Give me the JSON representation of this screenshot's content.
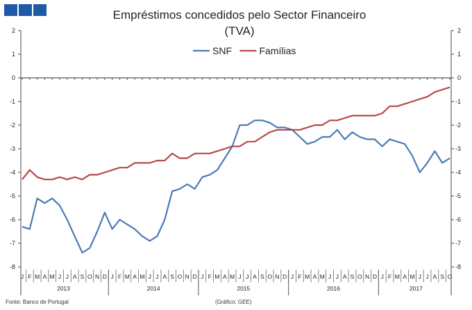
{
  "logo_colors": [
    "#1f5aa6",
    "#1f5aa6",
    "#1f5aa6"
  ],
  "footer": {
    "source": "Fonte: Banco de Portugal",
    "credit": "(Gráfico: GEE)"
  },
  "chart_data": {
    "type": "line",
    "title": "Empréstimos concedidos pelo Sector Financeiro",
    "subtitle": "(TVA)",
    "xlabel": "",
    "ylabel": "",
    "ylim": [
      -8,
      2
    ],
    "yticks": [
      2,
      1,
      0,
      -1,
      -2,
      -3,
      -4,
      -5,
      -6,
      -7,
      -8
    ],
    "legend_position": "top-center",
    "grid": false,
    "years": [
      {
        "label": "2013",
        "months": 12
      },
      {
        "label": "2014",
        "months": 12
      },
      {
        "label": "2015",
        "months": 12
      },
      {
        "label": "2016",
        "months": 12
      },
      {
        "label": "2017",
        "months": 10
      }
    ],
    "month_labels": [
      "J",
      "F",
      "M",
      "A",
      "M",
      "J",
      "J",
      "A",
      "S",
      "O",
      "N",
      "D"
    ],
    "series": [
      {
        "name": "SNF",
        "color": "#4a7ab5",
        "values": [
          -6.3,
          -6.4,
          -5.1,
          -5.3,
          -5.1,
          -5.4,
          -6.0,
          -6.7,
          -7.4,
          -7.2,
          -6.5,
          -5.7,
          -6.4,
          -6.0,
          -6.2,
          -6.4,
          -6.7,
          -6.9,
          -6.7,
          -6.0,
          -4.8,
          -4.7,
          -4.5,
          -4.7,
          -4.2,
          -4.1,
          -3.9,
          -3.4,
          -2.9,
          -2.0,
          -2.0,
          -1.8,
          -1.8,
          -1.9,
          -2.1,
          -2.1,
          -2.2,
          -2.5,
          -2.8,
          -2.7,
          -2.5,
          -2.5,
          -2.2,
          -2.6,
          -2.3,
          -2.5,
          -2.6,
          -2.6,
          -2.9,
          -2.6,
          -2.7,
          -2.8,
          -3.3,
          -4.0,
          -3.6,
          -3.1,
          -3.6,
          -3.4
        ]
      },
      {
        "name": "Famílias",
        "color": "#b54a47",
        "values": [
          -4.3,
          -3.9,
          -4.2,
          -4.3,
          -4.3,
          -4.2,
          -4.3,
          -4.2,
          -4.3,
          -4.1,
          -4.1,
          -4.0,
          -3.9,
          -3.8,
          -3.8,
          -3.6,
          -3.6,
          -3.6,
          -3.5,
          -3.5,
          -3.2,
          -3.4,
          -3.4,
          -3.2,
          -3.2,
          -3.2,
          -3.1,
          -3.0,
          -2.9,
          -2.9,
          -2.7,
          -2.7,
          -2.5,
          -2.3,
          -2.2,
          -2.2,
          -2.2,
          -2.2,
          -2.1,
          -2.0,
          -2.0,
          -1.8,
          -1.8,
          -1.7,
          -1.6,
          -1.6,
          -1.6,
          -1.6,
          -1.5,
          -1.2,
          -1.2,
          -1.1,
          -1.0,
          -0.9,
          -0.8,
          -0.6,
          -0.5,
          -0.4
        ]
      }
    ]
  }
}
